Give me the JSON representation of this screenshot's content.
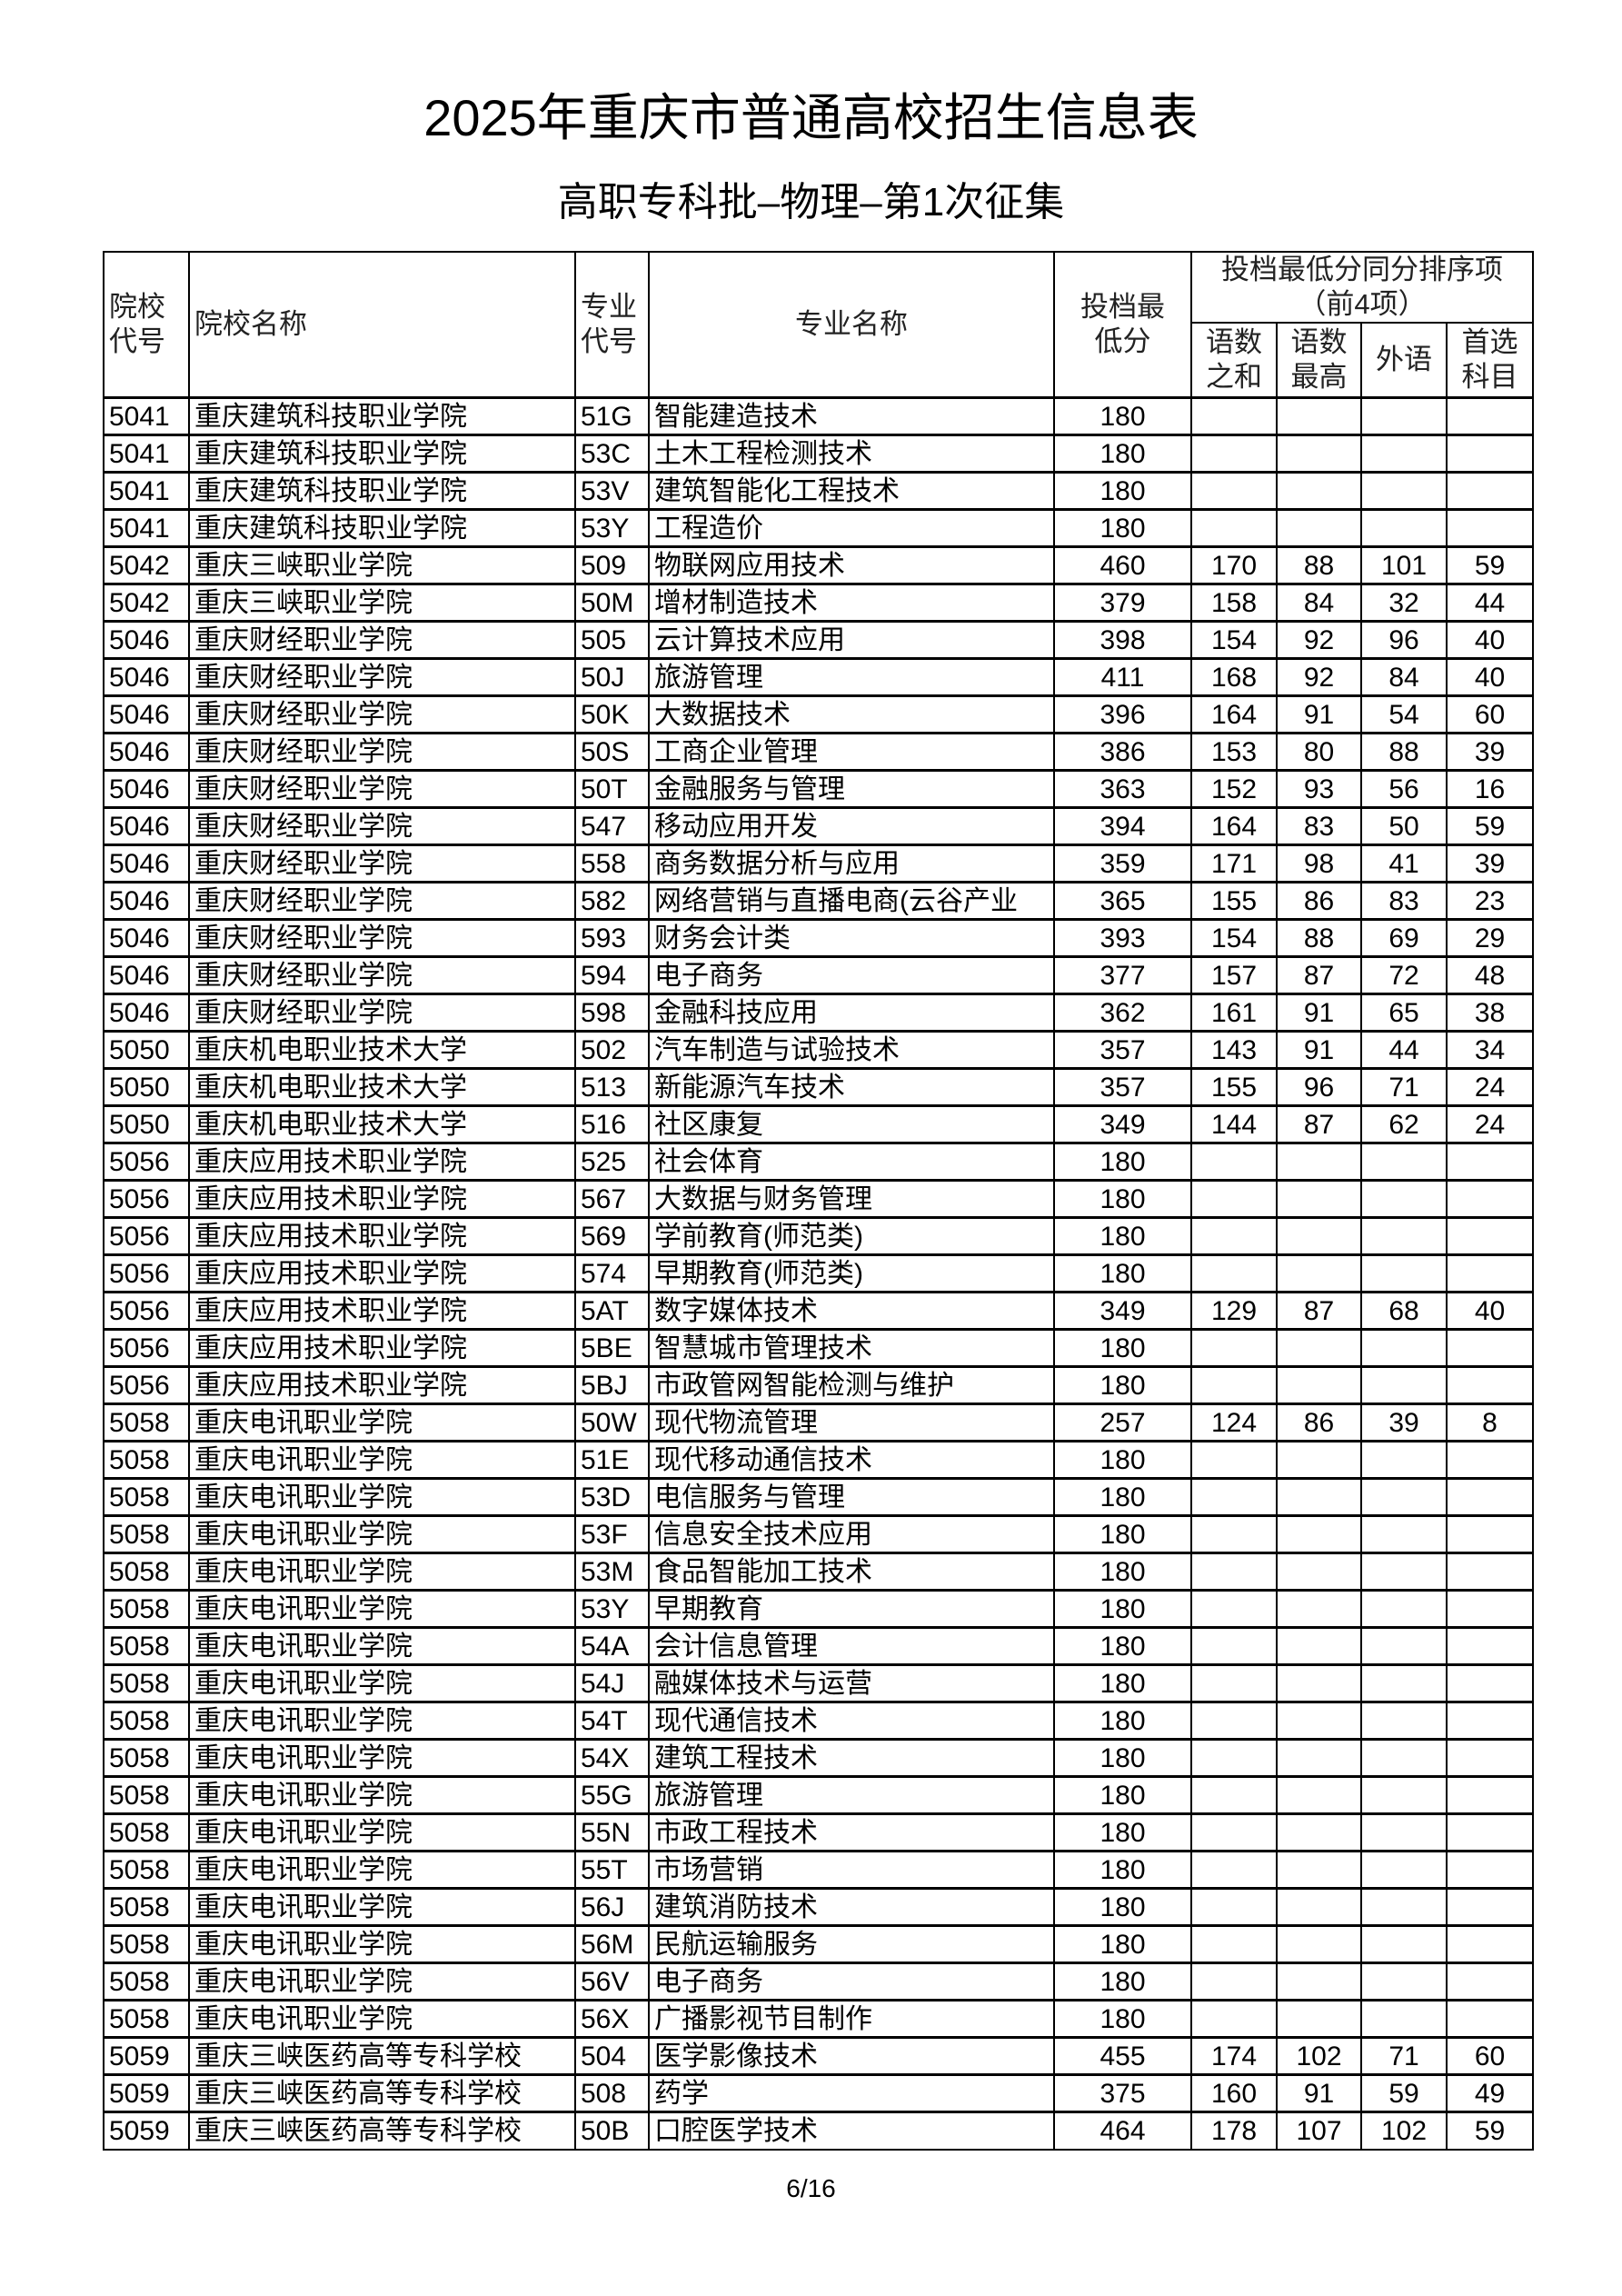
{
  "title": "2025年重庆市普通高校招生信息表",
  "subtitle": "高职专科批–物理–第1次征集",
  "headers": {
    "school_code": "院校代号",
    "school_name": "院校名称",
    "major_code": "专业代号",
    "major_name": "专业名称",
    "min_score": "投档最低分",
    "tiebreak_group": "投档最低分同分排序项（前4项）",
    "tb1": "语数之和",
    "tb2": "语数最高",
    "tb3": "外语",
    "tb4": "首选科目"
  },
  "rows": [
    [
      "5041",
      "重庆建筑科技职业学院",
      "51G",
      "智能建造技术",
      "180",
      "",
      "",
      "",
      ""
    ],
    [
      "5041",
      "重庆建筑科技职业学院",
      "53C",
      "土木工程检测技术",
      "180",
      "",
      "",
      "",
      ""
    ],
    [
      "5041",
      "重庆建筑科技职业学院",
      "53V",
      "建筑智能化工程技术",
      "180",
      "",
      "",
      "",
      ""
    ],
    [
      "5041",
      "重庆建筑科技职业学院",
      "53Y",
      "工程造价",
      "180",
      "",
      "",
      "",
      ""
    ],
    [
      "5042",
      "重庆三峡职业学院",
      "509",
      "物联网应用技术",
      "460",
      "170",
      "88",
      "101",
      "59"
    ],
    [
      "5042",
      "重庆三峡职业学院",
      "50M",
      "增材制造技术",
      "379",
      "158",
      "84",
      "32",
      "44"
    ],
    [
      "5046",
      "重庆财经职业学院",
      "505",
      "云计算技术应用",
      "398",
      "154",
      "92",
      "96",
      "40"
    ],
    [
      "5046",
      "重庆财经职业学院",
      "50J",
      "旅游管理",
      "411",
      "168",
      "92",
      "84",
      "40"
    ],
    [
      "5046",
      "重庆财经职业学院",
      "50K",
      "大数据技术",
      "396",
      "164",
      "91",
      "54",
      "60"
    ],
    [
      "5046",
      "重庆财经职业学院",
      "50S",
      "工商企业管理",
      "386",
      "153",
      "80",
      "88",
      "39"
    ],
    [
      "5046",
      "重庆财经职业学院",
      "50T",
      "金融服务与管理",
      "363",
      "152",
      "93",
      "56",
      "16"
    ],
    [
      "5046",
      "重庆财经职业学院",
      "547",
      "移动应用开发",
      "394",
      "164",
      "83",
      "50",
      "59"
    ],
    [
      "5046",
      "重庆财经职业学院",
      "558",
      "商务数据分析与应用",
      "359",
      "171",
      "98",
      "41",
      "39"
    ],
    [
      "5046",
      "重庆财经职业学院",
      "582",
      "网络营销与直播电商(云谷产业",
      "365",
      "155",
      "86",
      "83",
      "23"
    ],
    [
      "5046",
      "重庆财经职业学院",
      "593",
      "财务会计类",
      "393",
      "154",
      "88",
      "69",
      "29"
    ],
    [
      "5046",
      "重庆财经职业学院",
      "594",
      "电子商务",
      "377",
      "157",
      "87",
      "72",
      "48"
    ],
    [
      "5046",
      "重庆财经职业学院",
      "598",
      "金融科技应用",
      "362",
      "161",
      "91",
      "65",
      "38"
    ],
    [
      "5050",
      "重庆机电职业技术大学",
      "502",
      "汽车制造与试验技术",
      "357",
      "143",
      "91",
      "44",
      "34"
    ],
    [
      "5050",
      "重庆机电职业技术大学",
      "513",
      "新能源汽车技术",
      "357",
      "155",
      "96",
      "71",
      "24"
    ],
    [
      "5050",
      "重庆机电职业技术大学",
      "516",
      "社区康复",
      "349",
      "144",
      "87",
      "62",
      "24"
    ],
    [
      "5056",
      "重庆应用技术职业学院",
      "525",
      "社会体育",
      "180",
      "",
      "",
      "",
      ""
    ],
    [
      "5056",
      "重庆应用技术职业学院",
      "567",
      "大数据与财务管理",
      "180",
      "",
      "",
      "",
      ""
    ],
    [
      "5056",
      "重庆应用技术职业学院",
      "569",
      "学前教育(师范类)",
      "180",
      "",
      "",
      "",
      ""
    ],
    [
      "5056",
      "重庆应用技术职业学院",
      "574",
      "早期教育(师范类)",
      "180",
      "",
      "",
      "",
      ""
    ],
    [
      "5056",
      "重庆应用技术职业学院",
      "5AT",
      "数字媒体技术",
      "349",
      "129",
      "87",
      "68",
      "40"
    ],
    [
      "5056",
      "重庆应用技术职业学院",
      "5BE",
      "智慧城市管理技术",
      "180",
      "",
      "",
      "",
      ""
    ],
    [
      "5056",
      "重庆应用技术职业学院",
      "5BJ",
      "市政管网智能检测与维护",
      "180",
      "",
      "",
      "",
      ""
    ],
    [
      "5058",
      "重庆电讯职业学院",
      "50W",
      "现代物流管理",
      "257",
      "124",
      "86",
      "39",
      "8"
    ],
    [
      "5058",
      "重庆电讯职业学院",
      "51E",
      "现代移动通信技术",
      "180",
      "",
      "",
      "",
      ""
    ],
    [
      "5058",
      "重庆电讯职业学院",
      "53D",
      "电信服务与管理",
      "180",
      "",
      "",
      "",
      ""
    ],
    [
      "5058",
      "重庆电讯职业学院",
      "53F",
      "信息安全技术应用",
      "180",
      "",
      "",
      "",
      ""
    ],
    [
      "5058",
      "重庆电讯职业学院",
      "53M",
      "食品智能加工技术",
      "180",
      "",
      "",
      "",
      ""
    ],
    [
      "5058",
      "重庆电讯职业学院",
      "53Y",
      "早期教育",
      "180",
      "",
      "",
      "",
      ""
    ],
    [
      "5058",
      "重庆电讯职业学院",
      "54A",
      "会计信息管理",
      "180",
      "",
      "",
      "",
      ""
    ],
    [
      "5058",
      "重庆电讯职业学院",
      "54J",
      "融媒体技术与运营",
      "180",
      "",
      "",
      "",
      ""
    ],
    [
      "5058",
      "重庆电讯职业学院",
      "54T",
      "现代通信技术",
      "180",
      "",
      "",
      "",
      ""
    ],
    [
      "5058",
      "重庆电讯职业学院",
      "54X",
      "建筑工程技术",
      "180",
      "",
      "",
      "",
      ""
    ],
    [
      "5058",
      "重庆电讯职业学院",
      "55G",
      "旅游管理",
      "180",
      "",
      "",
      "",
      ""
    ],
    [
      "5058",
      "重庆电讯职业学院",
      "55N",
      "市政工程技术",
      "180",
      "",
      "",
      "",
      ""
    ],
    [
      "5058",
      "重庆电讯职业学院",
      "55T",
      "市场营销",
      "180",
      "",
      "",
      "",
      ""
    ],
    [
      "5058",
      "重庆电讯职业学院",
      "56J",
      "建筑消防技术",
      "180",
      "",
      "",
      "",
      ""
    ],
    [
      "5058",
      "重庆电讯职业学院",
      "56M",
      "民航运输服务",
      "180",
      "",
      "",
      "",
      ""
    ],
    [
      "5058",
      "重庆电讯职业学院",
      "56V",
      "电子商务",
      "180",
      "",
      "",
      "",
      ""
    ],
    [
      "5058",
      "重庆电讯职业学院",
      "56X",
      "广播影视节目制作",
      "180",
      "",
      "",
      "",
      ""
    ],
    [
      "5059",
      "重庆三峡医药高等专科学校",
      "504",
      "医学影像技术",
      "455",
      "174",
      "102",
      "71",
      "60"
    ],
    [
      "5059",
      "重庆三峡医药高等专科学校",
      "508",
      "药学",
      "375",
      "160",
      "91",
      "59",
      "49"
    ],
    [
      "5059",
      "重庆三峡医药高等专科学校",
      "50B",
      "口腔医学技术",
      "464",
      "178",
      "107",
      "102",
      "59"
    ]
  ],
  "page_number": "6/16"
}
